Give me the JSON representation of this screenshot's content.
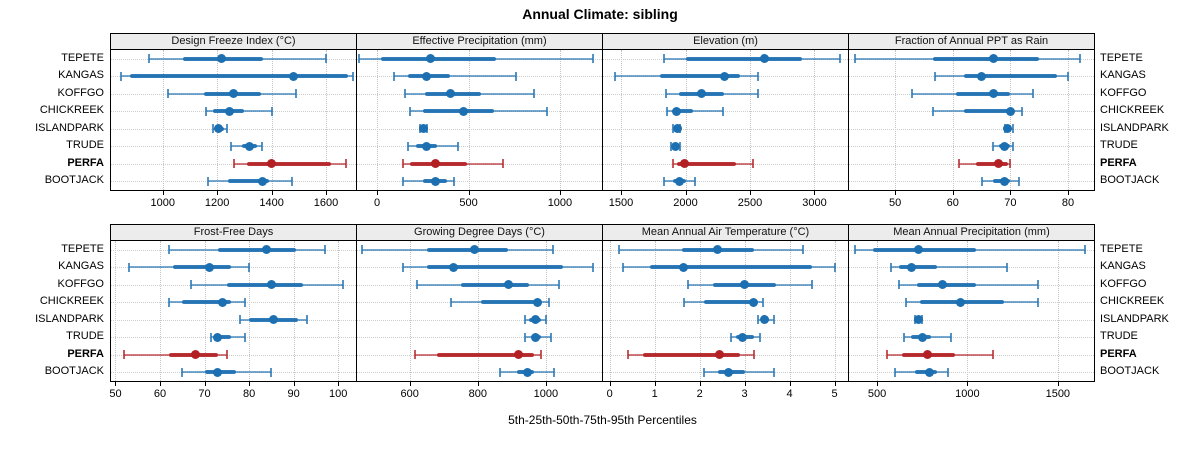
{
  "title": "Annual Climate: sibling",
  "caption": "5th-25th-50th-75th-95th Percentiles",
  "colors": {
    "series_blue": "#1c6fb1",
    "highlight_red": "#b32024",
    "strip_bg": "#ececec",
    "grid": "#c9c9c9",
    "panel_border": "#000000"
  },
  "chart_data": {
    "type": "dotplot",
    "subtype": "percentile-ranges",
    "title": "Annual Climate: sibling",
    "xlabel": "5th-25th-50th-75th-95th Percentiles",
    "percentile_labels": [
      "5th",
      "25th",
      "50th",
      "75th",
      "95th"
    ],
    "categories": [
      "TEPETE",
      "KANGAS",
      "KOFFGO",
      "CHICKREEK",
      "ISLANDPARK",
      "TRUDE",
      "PERFA",
      "BOOTJACK"
    ],
    "highlighted_category": "PERFA",
    "legend_position": "none",
    "grid": "dotted",
    "panels": [
      {
        "title": "Design Freeze Index (°C)",
        "ticks": [
          1000,
          1200,
          1400,
          1600
        ],
        "xlim": [
          810,
          1710
        ],
        "series": [
          [
            950,
            1075,
            1215,
            1370,
            1600
          ],
          [
            845,
            880,
            1480,
            1680,
            1700
          ],
          [
            1020,
            1150,
            1260,
            1360,
            1490
          ],
          [
            1160,
            1185,
            1245,
            1300,
            1400
          ],
          [
            1185,
            1195,
            1205,
            1225,
            1235
          ],
          [
            1250,
            1290,
            1320,
            1345,
            1365
          ],
          [
            1260,
            1310,
            1400,
            1620,
            1675
          ],
          [
            1165,
            1240,
            1365,
            1390,
            1475
          ]
        ]
      },
      {
        "title": "Effective Precipitation (mm)",
        "ticks": [
          0,
          500,
          1000
        ],
        "xlim": [
          -110,
          1230
        ],
        "series": [
          [
            -100,
            20,
            290,
            650,
            1180
          ],
          [
            90,
            170,
            270,
            400,
            760
          ],
          [
            150,
            260,
            400,
            570,
            860
          ],
          [
            180,
            250,
            470,
            640,
            930
          ],
          [
            235,
            245,
            255,
            265,
            275
          ],
          [
            170,
            210,
            270,
            330,
            440
          ],
          [
            140,
            180,
            320,
            490,
            690
          ],
          [
            140,
            250,
            320,
            380,
            420
          ]
        ]
      },
      {
        "title": "Elevation (m)",
        "ticks": [
          1500,
          2000,
          2500,
          3000
        ],
        "xlim": [
          1360,
          3260
        ],
        "series": [
          [
            1830,
            2000,
            2610,
            2900,
            3200
          ],
          [
            1450,
            1800,
            2300,
            2420,
            2560
          ],
          [
            1850,
            1950,
            2120,
            2300,
            2560
          ],
          [
            1860,
            1900,
            1930,
            2060,
            2290
          ],
          [
            1905,
            1920,
            1935,
            1950,
            1960
          ],
          [
            1890,
            1910,
            1925,
            1945,
            1955
          ],
          [
            1900,
            1930,
            1990,
            2390,
            2520
          ],
          [
            1830,
            1900,
            1950,
            2000,
            2070
          ]
        ]
      },
      {
        "title": "Fraction of Annual PPT as Rain",
        "ticks": [
          50,
          60,
          70,
          80
        ],
        "xlim": [
          42,
          84.5
        ],
        "series": [
          [
            43,
            56.5,
            67,
            75,
            82
          ],
          [
            57,
            62,
            65,
            78,
            80
          ],
          [
            53,
            60.5,
            67,
            70,
            74
          ],
          [
            56.5,
            62,
            70,
            70.5,
            72
          ],
          [
            69,
            69.2,
            69.5,
            70,
            70.5
          ],
          [
            67,
            68,
            69,
            70,
            70.5
          ],
          [
            61,
            64,
            68,
            69.5,
            70
          ],
          [
            65,
            67,
            69,
            70,
            71.5
          ]
        ]
      },
      {
        "title": "Frost-Free Days",
        "ticks": [
          50,
          60,
          70,
          80,
          90,
          100
        ],
        "xlim": [
          49,
          104
        ],
        "series": [
          [
            62,
            73,
            84,
            90.5,
            97
          ],
          [
            53,
            63,
            71,
            76,
            80
          ],
          [
            67,
            75,
            85,
            92,
            101
          ],
          [
            62,
            65,
            74,
            76,
            79
          ],
          [
            78,
            80,
            85.5,
            91,
            93
          ],
          [
            71.5,
            72.5,
            73,
            76,
            79
          ],
          [
            52,
            62,
            68,
            73,
            75
          ],
          [
            65,
            70,
            73,
            77,
            85
          ]
        ]
      },
      {
        "title": "Growing Degree Days (°C)",
        "ticks": [
          600,
          800,
          1000
        ],
        "xlim": [
          445,
          1165
        ],
        "series": [
          [
            460,
            650,
            790,
            890,
            1020
          ],
          [
            580,
            650,
            730,
            1050,
            1140
          ],
          [
            620,
            750,
            890,
            950,
            1040
          ],
          [
            720,
            810,
            975,
            990,
            1010
          ],
          [
            940,
            950,
            970,
            985,
            1000
          ],
          [
            940,
            955,
            970,
            985,
            1015
          ],
          [
            615,
            680,
            920,
            965,
            985
          ],
          [
            865,
            915,
            945,
            965,
            1025
          ]
        ]
      },
      {
        "title": "Mean Annual Air Temperature (°C)",
        "ticks": [
          0,
          1,
          2,
          3,
          4,
          5
        ],
        "xlim": [
          -0.15,
          5.3
        ],
        "series": [
          [
            0.2,
            1.6,
            2.4,
            3.2,
            4.3
          ],
          [
            0.3,
            0.9,
            1.65,
            4.5,
            5.0
          ],
          [
            1.75,
            2.3,
            3.0,
            3.7,
            4.5
          ],
          [
            1.65,
            2.1,
            3.2,
            3.3,
            3.4
          ],
          [
            3.3,
            3.4,
            3.45,
            3.55,
            3.65
          ],
          [
            2.7,
            2.8,
            2.95,
            3.2,
            3.35
          ],
          [
            0.4,
            0.75,
            2.45,
            2.9,
            3.2
          ],
          [
            2.1,
            2.4,
            2.65,
            3.0,
            3.65
          ]
        ]
      },
      {
        "title": "Mean Annual Precipitation (mm)",
        "ticks": [
          500,
          1000,
          1500
        ],
        "xlim": [
          345,
          1700
        ],
        "series": [
          [
            380,
            480,
            730,
            1050,
            1650
          ],
          [
            580,
            620,
            690,
            830,
            1220
          ],
          [
            620,
            720,
            860,
            1050,
            1390
          ],
          [
            660,
            740,
            960,
            1200,
            1390
          ],
          [
            710,
            720,
            730,
            740,
            750
          ],
          [
            650,
            690,
            750,
            800,
            910
          ],
          [
            555,
            640,
            780,
            930,
            1140
          ],
          [
            600,
            710,
            790,
            830,
            890
          ]
        ]
      }
    ]
  }
}
